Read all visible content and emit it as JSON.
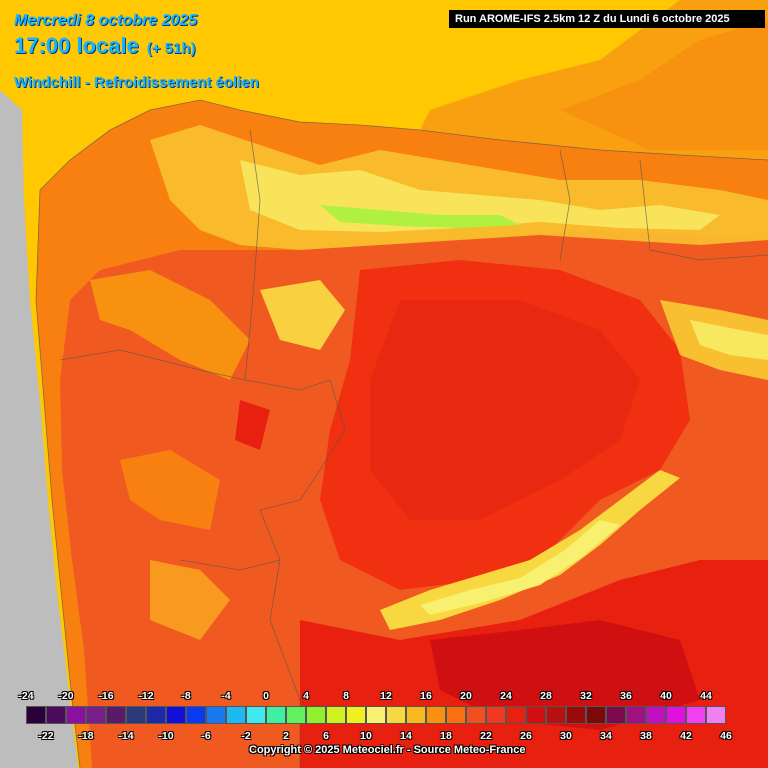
{
  "header": {
    "date": "Mercredi 8 octobre 2025",
    "time": "17:00 locale",
    "offset": "(+ 51h)",
    "variable": "Windchill - Refroidissement éolien"
  },
  "run_label": "Run AROME-IFS 2.5km 12 Z du Lundi 6 octobre 2025",
  "copyright": "Copyright © 2025 Meteociel.fr - Source Meteo-France",
  "legend": {
    "top_labels": [
      "-24",
      "-20",
      "-16",
      "-12",
      "-8",
      "-4",
      "0",
      "4",
      "8",
      "12",
      "16",
      "20",
      "24",
      "28",
      "32",
      "36",
      "40",
      "44"
    ],
    "bottom_labels": [
      "-22",
      "-18",
      "-14",
      "-10",
      "-6",
      "-2",
      "2",
      "6",
      "10",
      "14",
      "18",
      "22",
      "26",
      "30",
      "34",
      "38",
      "42",
      "46"
    ],
    "colors": [
      "#2a0038",
      "#4a0a5e",
      "#8a10a0",
      "#7a1f8a",
      "#5a1a6a",
      "#2a3a7a",
      "#1a2aa8",
      "#1010d8",
      "#0a3af0",
      "#1a78f0",
      "#20b8f0",
      "#40e8f0",
      "#40f0a0",
      "#60f060",
      "#90f030",
      "#d0f020",
      "#f0f020",
      "#f8f070",
      "#f8d840",
      "#f8b820",
      "#f89010",
      "#f87010",
      "#f05020",
      "#f03820",
      "#e82010",
      "#d01010",
      "#b81010",
      "#9a0a0a",
      "#7a0a0a",
      "#7a0a4a",
      "#a01080",
      "#c010c0",
      "#e010e0",
      "#f040f0",
      "#f080f0"
    ]
  },
  "map": {
    "sea_color": "#ffc800",
    "land_base_color": "#f05020"
  }
}
